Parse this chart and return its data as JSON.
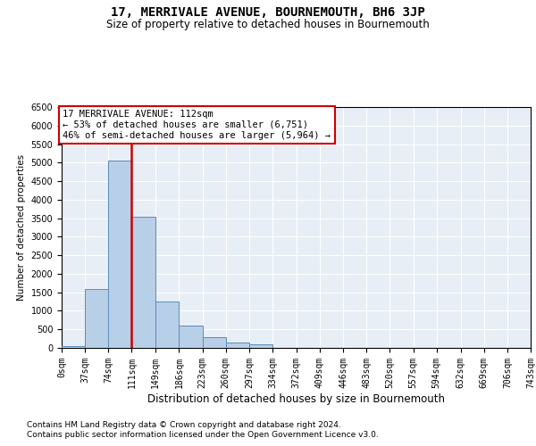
{
  "title": "17, MERRIVALE AVENUE, BOURNEMOUTH, BH6 3JP",
  "subtitle": "Size of property relative to detached houses in Bournemouth",
  "xlabel": "Distribution of detached houses by size in Bournemouth",
  "ylabel": "Number of detached properties",
  "footnote1": "Contains HM Land Registry data © Crown copyright and database right 2024.",
  "footnote2": "Contains public sector information licensed under the Open Government Licence v3.0.",
  "annotation_line1": "17 MERRIVALE AVENUE: 112sqm",
  "annotation_line2": "← 53% of detached houses are smaller (6,751)",
  "annotation_line3": "46% of semi-detached houses are larger (5,964) →",
  "bin_edges": [
    0,
    37,
    74,
    111,
    149,
    186,
    223,
    260,
    297,
    334,
    372,
    409,
    446,
    483,
    520,
    557,
    594,
    632,
    669,
    706,
    743
  ],
  "bin_labels": [
    "0sqm",
    "37sqm",
    "74sqm",
    "111sqm",
    "149sqm",
    "186sqm",
    "223sqm",
    "260sqm",
    "297sqm",
    "334sqm",
    "372sqm",
    "409sqm",
    "446sqm",
    "483sqm",
    "520sqm",
    "557sqm",
    "594sqm",
    "632sqm",
    "669sqm",
    "706sqm",
    "743sqm"
  ],
  "bar_heights": [
    50,
    1600,
    5050,
    3550,
    1250,
    600,
    280,
    150,
    90,
    0,
    0,
    0,
    0,
    0,
    0,
    0,
    0,
    0,
    0,
    0
  ],
  "bar_color": "#b8cfe8",
  "bar_edge_color": "#5b8db8",
  "vline_x": 111,
  "vline_color": "#cc0000",
  "ylim": [
    0,
    6500
  ],
  "yticks": [
    0,
    500,
    1000,
    1500,
    2000,
    2500,
    3000,
    3500,
    4000,
    4500,
    5000,
    5500,
    6000,
    6500
  ],
  "bg_color": "#e8eef5",
  "grid_color": "#ffffff",
  "title_fontsize": 10,
  "subtitle_fontsize": 8.5,
  "xlabel_fontsize": 8.5,
  "ylabel_fontsize": 7.5,
  "annotation_fontsize": 7.5,
  "tick_fontsize": 7,
  "footnote_fontsize": 6.5
}
